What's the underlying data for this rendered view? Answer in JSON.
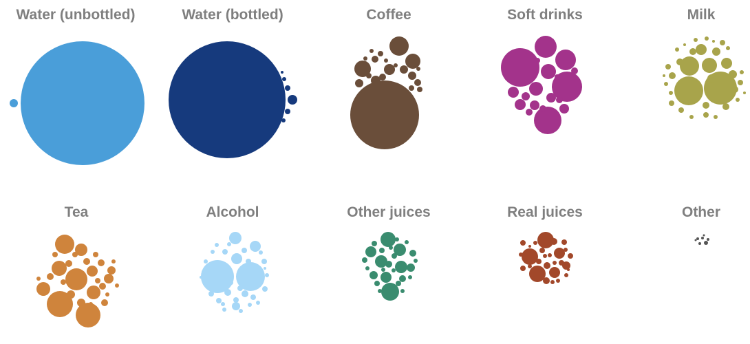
{
  "chart_data": {
    "type": "packed-bubble",
    "panels": [
      {
        "title": "Water (unbottled)",
        "color": "#4A9ED9"
      },
      {
        "title": "Water (bottled)",
        "color": "#163A7D"
      },
      {
        "title": "Coffee",
        "color": "#6A4E3A"
      },
      {
        "title": "Soft drinks",
        "color": "#A3338B"
      },
      {
        "title": "Milk",
        "color": "#A8A44B"
      },
      {
        "title": "Tea",
        "color": "#CF843C"
      },
      {
        "title": "Alcohol",
        "color": "#A6D7F7"
      },
      {
        "title": "Other juices",
        "color": "#3A8C6F"
      },
      {
        "title": "Real juices",
        "color": "#A2482A"
      },
      {
        "title": "Other",
        "color": "#555555"
      }
    ],
    "grid": false,
    "legend": "none"
  }
}
